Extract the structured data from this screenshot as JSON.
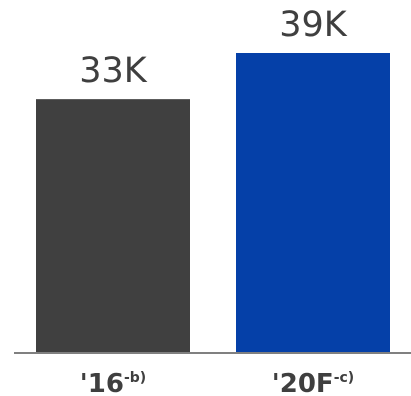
{
  "chart_data": {
    "type": "bar",
    "categories": [
      "'16",
      "'20F"
    ],
    "category_notes": [
      "-b)",
      "-c)"
    ],
    "values": [
      33,
      39
    ],
    "value_labels": [
      "33K",
      "39K"
    ],
    "unit": "K",
    "colors": [
      "#404040",
      "#0540A8"
    ],
    "axis_color": "#808080",
    "text_color": "#3f3f3f",
    "ylim": [
      0,
      39
    ]
  }
}
